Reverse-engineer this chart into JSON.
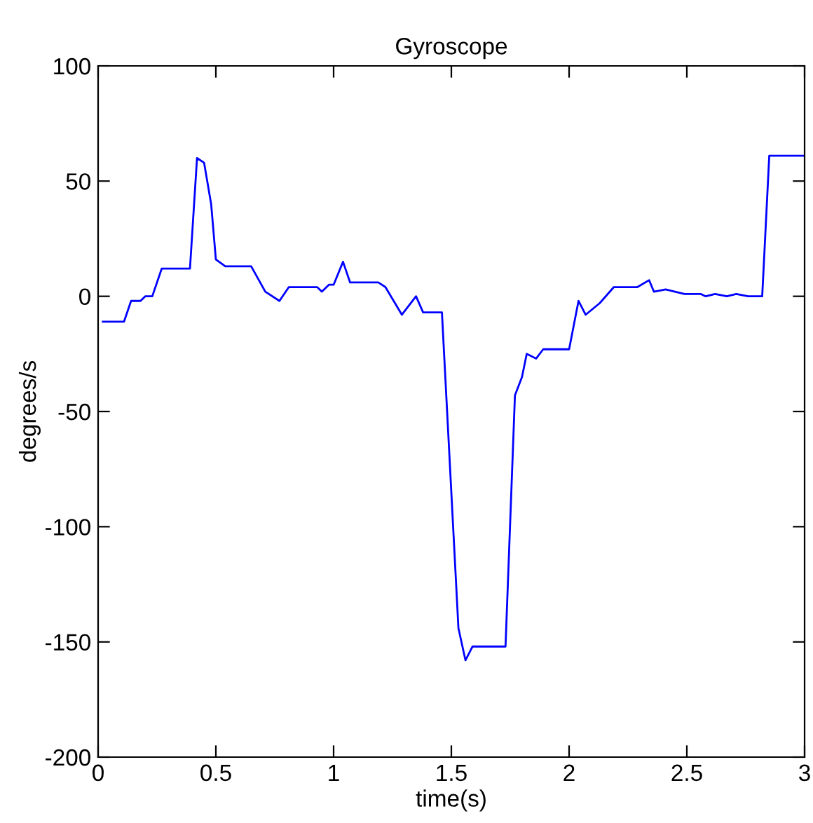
{
  "chart_data": {
    "type": "line",
    "title": "Gyroscope",
    "xlabel": "time(s)",
    "ylabel": "degrees/s",
    "xlim": [
      0,
      3
    ],
    "ylim": [
      -200,
      100
    ],
    "xticks": [
      0,
      0.5,
      1,
      1.5,
      2,
      2.5,
      3
    ],
    "yticks": [
      -200,
      -150,
      -100,
      -50,
      0,
      50,
      100
    ],
    "grid": false,
    "series": [
      {
        "color": "#0000ff",
        "x": [
          0.02,
          0.11,
          0.14,
          0.18,
          0.2,
          0.23,
          0.27,
          0.39,
          0.42,
          0.45,
          0.48,
          0.5,
          0.54,
          0.65,
          0.71,
          0.77,
          0.81,
          0.93,
          0.95,
          0.98,
          1.0,
          1.04,
          1.07,
          1.19,
          1.22,
          1.29,
          1.35,
          1.38,
          1.46,
          1.53,
          1.56,
          1.59,
          1.73,
          1.77,
          1.8,
          1.82,
          1.86,
          1.89,
          2.0,
          2.04,
          2.07,
          2.13,
          2.19,
          2.29,
          2.34,
          2.36,
          2.41,
          2.49,
          2.56,
          2.58,
          2.62,
          2.67,
          2.71,
          2.76,
          2.82,
          2.85,
          3.0
        ],
        "values": [
          -11,
          -11,
          -2,
          -2,
          0,
          0,
          12,
          12,
          60,
          58,
          40,
          16,
          13,
          13,
          2,
          -2,
          4,
          4,
          2,
          5,
          5,
          15,
          6,
          6,
          4,
          -8,
          0,
          -7,
          -7,
          -144,
          -158,
          -152,
          -152,
          -43,
          -35,
          -25,
          -27,
          -23,
          -23,
          -2,
          -8,
          -3,
          4,
          4,
          7,
          2,
          3,
          1,
          1,
          0,
          1,
          0,
          1,
          0,
          0,
          61,
          61
        ]
      }
    ]
  }
}
